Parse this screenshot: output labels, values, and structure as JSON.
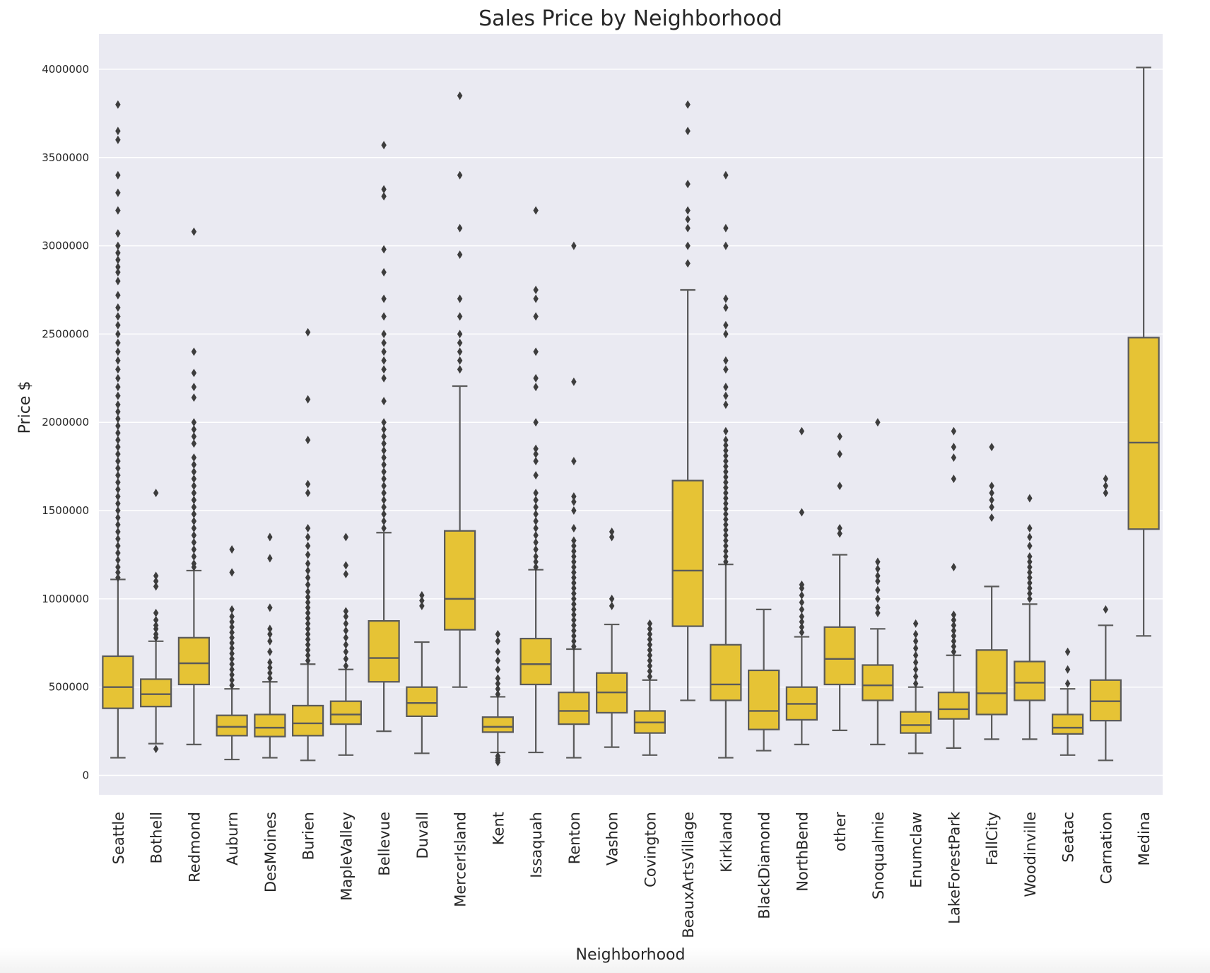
{
  "chart_data": {
    "type": "box",
    "title": "Sales Price by Neighborhood",
    "xlabel": "Neighborhood",
    "ylabel": "Price $",
    "ylim": [
      -110000,
      4200000
    ],
    "yticks": [
      0,
      500000,
      1000000,
      1500000,
      2000000,
      2500000,
      3000000,
      3500000,
      4000000
    ],
    "ytick_labels": [
      "0",
      "500000",
      "1000000",
      "1500000",
      "2000000",
      "2500000",
      "3000000",
      "3500000",
      "4000000"
    ],
    "grid": true,
    "box_color": "#e6c335",
    "line_color": "#5a5a5a",
    "background_color": "#eaeaf2",
    "categories": [
      "Seattle",
      "Bothell",
      "Redmond",
      "Auburn",
      "DesMoines",
      "Burien",
      "MapleValley",
      "Bellevue",
      "Duvall",
      "MercerIsland",
      "Kent",
      "Issaquah",
      "Renton",
      "Vashon",
      "Covington",
      "BeauxArtsVillage",
      "Kirkland",
      "BlackDiamond",
      "NorthBend",
      "other",
      "Snoqualmie",
      "Enumclaw",
      "LakeForestPark",
      "FallCity",
      "Woodinville",
      "Seatac",
      "Carnation",
      "Medina"
    ],
    "boxes": [
      {
        "whislo": 100000,
        "q1": 380000,
        "med": 500000,
        "q3": 675000,
        "whishi": 1110000,
        "fliers": [
          1120000,
          1150000,
          1180000,
          1220000,
          1260000,
          1300000,
          1340000,
          1380000,
          1420000,
          1460000,
          1500000,
          1540000,
          1580000,
          1620000,
          1660000,
          1700000,
          1740000,
          1780000,
          1820000,
          1860000,
          1900000,
          1940000,
          1980000,
          2020000,
          2060000,
          2100000,
          2150000,
          2200000,
          2250000,
          2300000,
          2350000,
          2400000,
          2450000,
          2500000,
          2550000,
          2600000,
          2650000,
          2720000,
          2800000,
          2850000,
          2880000,
          2920000,
          2960000,
          3000000,
          3070000,
          3200000,
          3300000,
          3400000,
          3600000,
          3650000,
          3800000
        ]
      },
      {
        "whislo": 180000,
        "q1": 390000,
        "med": 460000,
        "q3": 545000,
        "whishi": 760000,
        "fliers": [
          150000,
          780000,
          800000,
          830000,
          850000,
          880000,
          920000,
          1070000,
          1100000,
          1130000,
          1600000
        ]
      },
      {
        "whislo": 175000,
        "q1": 515000,
        "med": 635000,
        "q3": 780000,
        "whishi": 1160000,
        "fliers": [
          1180000,
          1200000,
          1240000,
          1280000,
          1320000,
          1360000,
          1400000,
          1440000,
          1480000,
          1520000,
          1560000,
          1600000,
          1640000,
          1680000,
          1720000,
          1760000,
          1800000,
          1880000,
          1920000,
          1960000,
          2000000,
          2140000,
          2200000,
          2280000,
          2400000,
          3080000
        ]
      },
      {
        "whislo": 90000,
        "q1": 225000,
        "med": 275000,
        "q3": 340000,
        "whishi": 490000,
        "fliers": [
          510000,
          540000,
          570000,
          600000,
          630000,
          660000,
          690000,
          720000,
          750000,
          780000,
          810000,
          840000,
          870000,
          900000,
          940000,
          1150000,
          1280000
        ]
      },
      {
        "whislo": 100000,
        "q1": 220000,
        "med": 270000,
        "q3": 345000,
        "whishi": 530000,
        "fliers": [
          550000,
          580000,
          610000,
          640000,
          700000,
          760000,
          800000,
          830000,
          950000,
          1230000,
          1350000
        ]
      },
      {
        "whislo": 85000,
        "q1": 225000,
        "med": 295000,
        "q3": 395000,
        "whishi": 630000,
        "fliers": [
          650000,
          680000,
          710000,
          740000,
          770000,
          800000,
          830000,
          860000,
          890000,
          920000,
          950000,
          980000,
          1010000,
          1040000,
          1080000,
          1120000,
          1160000,
          1200000,
          1250000,
          1300000,
          1350000,
          1400000,
          1600000,
          1650000,
          1900000,
          2130000,
          2510000
        ]
      },
      {
        "whislo": 115000,
        "q1": 290000,
        "med": 345000,
        "q3": 420000,
        "whishi": 600000,
        "fliers": [
          620000,
          660000,
          700000,
          740000,
          780000,
          820000,
          860000,
          900000,
          930000,
          1140000,
          1190000,
          1350000
        ]
      },
      {
        "whislo": 250000,
        "q1": 530000,
        "med": 665000,
        "q3": 875000,
        "whishi": 1375000,
        "fliers": [
          1400000,
          1440000,
          1480000,
          1520000,
          1560000,
          1600000,
          1640000,
          1680000,
          1720000,
          1760000,
          1800000,
          1840000,
          1880000,
          1920000,
          1960000,
          2000000,
          2120000,
          2250000,
          2300000,
          2350000,
          2400000,
          2450000,
          2500000,
          2600000,
          2700000,
          2850000,
          2980000,
          3280000,
          3320000,
          3570000
        ]
      },
      {
        "whislo": 125000,
        "q1": 335000,
        "med": 410000,
        "q3": 500000,
        "whishi": 755000,
        "fliers": [
          960000,
          990000,
          1020000
        ]
      },
      {
        "whislo": 500000,
        "q1": 825000,
        "med": 1000000,
        "q3": 1385000,
        "whishi": 2205000,
        "fliers": [
          2300000,
          2350000,
          2400000,
          2450000,
          2500000,
          2600000,
          2700000,
          2950000,
          3100000,
          3400000,
          3850000
        ]
      },
      {
        "whislo": 130000,
        "q1": 245000,
        "med": 275000,
        "q3": 330000,
        "whishi": 445000,
        "fliers": [
          75000,
          85000,
          95000,
          110000,
          460000,
          490000,
          520000,
          550000,
          600000,
          650000,
          700000,
          760000,
          800000
        ]
      },
      {
        "whislo": 130000,
        "q1": 515000,
        "med": 630000,
        "q3": 775000,
        "whishi": 1165000,
        "fliers": [
          1180000,
          1210000,
          1240000,
          1280000,
          1320000,
          1360000,
          1400000,
          1440000,
          1480000,
          1520000,
          1560000,
          1600000,
          1700000,
          1780000,
          1820000,
          1850000,
          2000000,
          2200000,
          2250000,
          2400000,
          2600000,
          2700000,
          2750000,
          3200000
        ]
      },
      {
        "whislo": 100000,
        "q1": 290000,
        "med": 365000,
        "q3": 470000,
        "whishi": 715000,
        "fliers": [
          730000,
          760000,
          790000,
          820000,
          850000,
          880000,
          910000,
          940000,
          970000,
          1000000,
          1030000,
          1060000,
          1090000,
          1120000,
          1150000,
          1180000,
          1210000,
          1240000,
          1270000,
          1300000,
          1330000,
          1400000,
          1500000,
          1550000,
          1580000,
          1780000,
          2230000,
          3000000
        ]
      },
      {
        "whislo": 160000,
        "q1": 355000,
        "med": 470000,
        "q3": 580000,
        "whishi": 855000,
        "fliers": [
          960000,
          1000000,
          1350000,
          1380000
        ]
      },
      {
        "whislo": 115000,
        "q1": 240000,
        "med": 300000,
        "q3": 365000,
        "whishi": 540000,
        "fliers": [
          560000,
          590000,
          620000,
          650000,
          680000,
          710000,
          740000,
          770000,
          800000,
          830000,
          860000
        ]
      },
      {
        "whislo": 425000,
        "q1": 845000,
        "med": 1160000,
        "q3": 1670000,
        "whishi": 2750000,
        "fliers": [
          2900000,
          3000000,
          3100000,
          3150000,
          3200000,
          3350000,
          3650000,
          3800000
        ]
      },
      {
        "whislo": 100000,
        "q1": 425000,
        "med": 515000,
        "q3": 740000,
        "whishi": 1195000,
        "fliers": [
          1210000,
          1240000,
          1270000,
          1300000,
          1330000,
          1360000,
          1390000,
          1420000,
          1450000,
          1480000,
          1510000,
          1540000,
          1570000,
          1600000,
          1630000,
          1660000,
          1690000,
          1720000,
          1750000,
          1780000,
          1810000,
          1840000,
          1870000,
          1900000,
          1950000,
          2100000,
          2150000,
          2200000,
          2300000,
          2350000,
          2500000,
          2550000,
          2650000,
          2700000,
          3000000,
          3100000,
          3400000
        ]
      },
      {
        "whislo": 140000,
        "q1": 260000,
        "med": 365000,
        "q3": 595000,
        "whishi": 940000,
        "fliers": []
      },
      {
        "whislo": 175000,
        "q1": 315000,
        "med": 405000,
        "q3": 500000,
        "whishi": 785000,
        "fliers": [
          810000,
          840000,
          870000,
          900000,
          940000,
          980000,
          1020000,
          1060000,
          1080000,
          1490000,
          1950000
        ]
      },
      {
        "whislo": 255000,
        "q1": 515000,
        "med": 660000,
        "q3": 840000,
        "whishi": 1250000,
        "fliers": [
          1370000,
          1400000,
          1640000,
          1820000,
          1920000
        ]
      },
      {
        "whislo": 175000,
        "q1": 425000,
        "med": 510000,
        "q3": 625000,
        "whishi": 830000,
        "fliers": [
          920000,
          950000,
          1000000,
          1050000,
          1100000,
          1130000,
          1170000,
          1210000,
          2000000
        ]
      },
      {
        "whislo": 125000,
        "q1": 240000,
        "med": 285000,
        "q3": 360000,
        "whishi": 500000,
        "fliers": [
          520000,
          560000,
          600000,
          640000,
          680000,
          720000,
          760000,
          800000,
          860000
        ]
      },
      {
        "whislo": 155000,
        "q1": 320000,
        "med": 375000,
        "q3": 470000,
        "whishi": 680000,
        "fliers": [
          700000,
          730000,
          760000,
          790000,
          820000,
          850000,
          880000,
          910000,
          1180000,
          1680000,
          1800000,
          1860000,
          1950000
        ]
      },
      {
        "whislo": 205000,
        "q1": 345000,
        "med": 465000,
        "q3": 710000,
        "whishi": 1070000,
        "fliers": [
          1460000,
          1520000,
          1560000,
          1600000,
          1640000,
          1860000
        ]
      },
      {
        "whislo": 205000,
        "q1": 425000,
        "med": 525000,
        "q3": 645000,
        "whishi": 970000,
        "fliers": [
          1000000,
          1030000,
          1060000,
          1090000,
          1120000,
          1150000,
          1180000,
          1210000,
          1240000,
          1300000,
          1350000,
          1400000,
          1570000
        ]
      },
      {
        "whislo": 115000,
        "q1": 235000,
        "med": 270000,
        "q3": 345000,
        "whishi": 490000,
        "fliers": [
          520000,
          600000,
          700000
        ]
      },
      {
        "whislo": 85000,
        "q1": 310000,
        "med": 420000,
        "q3": 540000,
        "whishi": 850000,
        "fliers": [
          940000,
          1600000,
          1640000,
          1680000
        ]
      },
      {
        "whislo": 790000,
        "q1": 1395000,
        "med": 1885000,
        "q3": 2480000,
        "whishi": 4010000,
        "fliers": []
      }
    ]
  }
}
